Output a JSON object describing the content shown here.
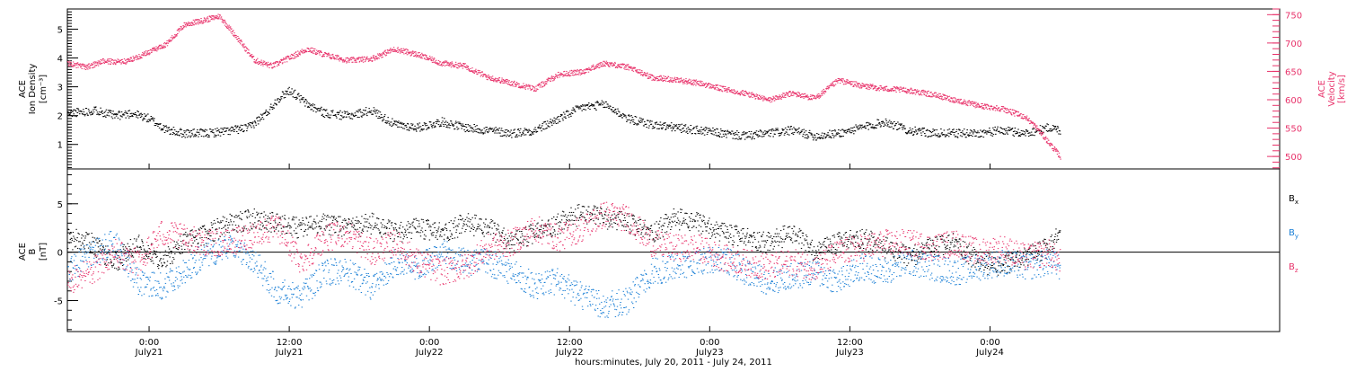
{
  "colors": {
    "axis": "#000000",
    "density": "#000000",
    "velocity": "#e8336b",
    "bx": "#000000",
    "by": "#1a7fd6",
    "bz": "#e8336b"
  },
  "x_axis": {
    "label": "hours:minutes, July 20, 2011 - July 24, 2011",
    "time_labels": [
      "0:00",
      "12:00",
      "0:00",
      "12:00",
      "0:00",
      "12:00",
      "0:00"
    ],
    "date_labels": [
      "July21",
      "July21",
      "July22",
      "July22",
      "July23",
      "July23",
      "July24"
    ]
  },
  "chart_data": [
    {
      "type": "scatter",
      "panel": "top",
      "x_unit": "hours since 2011-07-20 00:00 UT",
      "xlim": [
        17.0,
        120.8
      ],
      "x_tick_hours": [
        24,
        36,
        48,
        60,
        72,
        84,
        96
      ],
      "left_axis": {
        "label_lines": [
          "ACE",
          "Ion Density",
          "[cm⁻³]"
        ],
        "ylim": [
          0.15,
          5.7
        ],
        "ticks": [
          1,
          2,
          3,
          4,
          5
        ],
        "minor_step": 0.1
      },
      "right_axis": {
        "label_lines": [
          "ACE",
          "Velocity",
          "[km/s]"
        ],
        "ylim": [
          478,
          760
        ],
        "ticks": [
          500,
          550,
          600,
          650,
          700,
          750
        ],
        "minor_step": 10
      },
      "series": [
        {
          "key": "density",
          "axis": "left",
          "color_key": "density",
          "jitter": 0.15,
          "x": [
            17.0,
            19.5,
            21.0,
            22.5,
            24.0,
            25.5,
            27.0,
            29.0,
            31.0,
            32.5,
            34.0,
            35.0,
            36.0,
            37.5,
            39.0,
            41.0,
            43.0,
            45.0,
            47.0,
            49.0,
            51.0,
            53.0,
            55.0,
            57.0,
            59.0,
            61.0,
            63.0,
            65.0,
            67.0,
            69.0,
            71.0,
            73.0,
            75.0,
            77.0,
            79.0,
            81.0,
            83.0,
            85.0,
            87.0,
            89.0,
            91.0,
            93.0,
            95.0,
            97.0,
            99.0,
            101.0,
            102.0
          ],
          "values": [
            2.1,
            2.2,
            2.0,
            2.1,
            1.9,
            1.5,
            1.4,
            1.4,
            1.5,
            1.6,
            2.1,
            2.6,
            2.9,
            2.4,
            2.1,
            2.0,
            2.2,
            1.7,
            1.6,
            1.8,
            1.6,
            1.5,
            1.4,
            1.5,
            1.9,
            2.3,
            2.4,
            1.9,
            1.7,
            1.6,
            1.5,
            1.4,
            1.3,
            1.4,
            1.5,
            1.3,
            1.4,
            1.6,
            1.8,
            1.5,
            1.4,
            1.4,
            1.4,
            1.5,
            1.4,
            1.6,
            1.5
          ]
        },
        {
          "key": "velocity",
          "axis": "right",
          "color_key": "velocity",
          "jitter": 5,
          "x": [
            17.0,
            18.5,
            20.0,
            22.0,
            24.0,
            25.5,
            27.0,
            28.5,
            30.0,
            31.5,
            33.0,
            34.5,
            36.0,
            37.5,
            39.0,
            41.0,
            43.0,
            45.0,
            47.0,
            49.0,
            51.0,
            53.0,
            55.0,
            57.0,
            59.0,
            61.0,
            63.0,
            65.0,
            67.0,
            69.0,
            71.0,
            73.0,
            75.0,
            77.0,
            79.0,
            81.0,
            83.0,
            85.0,
            87.0,
            89.0,
            91.0,
            93.0,
            95.0,
            97.0,
            99.0,
            100.0,
            101.0,
            102.0
          ],
          "values": [
            665,
            658,
            668,
            668,
            685,
            700,
            733,
            740,
            748,
            710,
            670,
            660,
            675,
            690,
            680,
            670,
            673,
            690,
            680,
            665,
            660,
            640,
            630,
            620,
            645,
            650,
            665,
            658,
            640,
            636,
            630,
            620,
            612,
            600,
            612,
            603,
            635,
            625,
            620,
            617,
            610,
            600,
            590,
            585,
            570,
            550,
            525,
            500
          ]
        }
      ]
    },
    {
      "type": "scatter",
      "panel": "bottom",
      "x_unit": "hours since 2011-07-20 00:00 UT",
      "xlim": [
        17.0,
        120.8
      ],
      "x_tick_hours": [
        24,
        36,
        48,
        60,
        72,
        84,
        96
      ],
      "left_axis": {
        "label_lines": [
          "ACE",
          "B",
          "[nT]"
        ],
        "ylim": [
          -8.2,
          8.6
        ],
        "ticks": [
          -5,
          0,
          5
        ],
        "minor_step": 1,
        "zero_line": true
      },
      "legend": {
        "placement": "right",
        "entries": [
          {
            "base": "B",
            "sub": "x",
            "color_key": "bx"
          },
          {
            "base": "B",
            "sub": "y",
            "color_key": "by"
          },
          {
            "base": "B",
            "sub": "z",
            "color_key": "bz"
          }
        ]
      },
      "series": [
        {
          "key": "bx",
          "color_key": "bx",
          "jitter": 1.1,
          "x": [
            17.0,
            19.0,
            21.0,
            23.0,
            25.0,
            27.0,
            29.0,
            31.0,
            33.0,
            35.0,
            37.0,
            39.0,
            41.0,
            43.0,
            45.0,
            47.0,
            49.0,
            51.0,
            53.0,
            55.0,
            57.0,
            59.0,
            61.0,
            63.0,
            65.0,
            67.0,
            69.0,
            71.0,
            73.0,
            75.0,
            77.0,
            79.0,
            81.0,
            83.0,
            85.0,
            87.0,
            89.0,
            91.0,
            93.0,
            95.0,
            97.0,
            99.0,
            101.0,
            102.0
          ],
          "values": [
            1.5,
            1.0,
            -1.0,
            1.0,
            -1.0,
            1.0,
            2.0,
            3.0,
            3.5,
            3.0,
            2.5,
            3.0,
            2.5,
            3.0,
            2.0,
            2.5,
            2.0,
            3.0,
            2.5,
            1.0,
            2.0,
            3.0,
            4.0,
            3.5,
            3.0,
            2.0,
            3.5,
            3.0,
            2.0,
            1.5,
            1.0,
            2.0,
            0.0,
            1.0,
            1.5,
            0.5,
            -0.5,
            0.5,
            1.0,
            -1.0,
            -1.5,
            -0.5,
            0.5,
            2.0
          ]
        },
        {
          "key": "by",
          "color_key": "by",
          "jitter": 1.4,
          "x": [
            17.0,
            19.0,
            21.0,
            23.0,
            25.0,
            27.0,
            29.0,
            31.0,
            33.0,
            35.0,
            37.0,
            39.0,
            41.0,
            43.0,
            45.0,
            47.0,
            49.0,
            51.0,
            53.0,
            55.0,
            57.0,
            59.0,
            61.0,
            63.0,
            65.0,
            67.0,
            69.0,
            71.0,
            73.0,
            75.0,
            77.0,
            79.0,
            81.0,
            83.0,
            85.0,
            87.0,
            89.0,
            91.0,
            93.0,
            95.0,
            97.0,
            99.0,
            101.0,
            102.0
          ],
          "values": [
            -2.0,
            0.0,
            1.0,
            -3.0,
            -3.5,
            -2.0,
            0.0,
            0.5,
            -1.0,
            -4.0,
            -4.5,
            -2.0,
            -2.0,
            -3.5,
            -1.0,
            -1.5,
            0.0,
            -1.0,
            -1.0,
            -2.0,
            -3.5,
            -3.0,
            -4.5,
            -5.5,
            -5.0,
            -2.0,
            -1.5,
            -1.0,
            -0.5,
            -2.0,
            -3.0,
            -2.5,
            -2.0,
            -3.0,
            -1.5,
            -2.0,
            -1.0,
            -1.5,
            -2.0,
            -1.5,
            -1.0,
            -1.5,
            -1.0,
            -1.5
          ]
        },
        {
          "key": "bz",
          "color_key": "bz",
          "jitter": 1.4,
          "x": [
            17.0,
            19.0,
            21.0,
            23.0,
            25.0,
            27.0,
            29.0,
            31.0,
            33.0,
            35.0,
            37.0,
            39.0,
            41.0,
            43.0,
            45.0,
            47.0,
            49.0,
            51.0,
            53.0,
            55.0,
            57.0,
            59.0,
            61.0,
            63.0,
            65.0,
            67.0,
            69.0,
            71.0,
            73.0,
            75.0,
            77.0,
            79.0,
            81.0,
            83.0,
            85.0,
            87.0,
            89.0,
            91.0,
            93.0,
            95.0,
            97.0,
            99.0,
            101.0,
            102.0
          ],
          "values": [
            -3.0,
            -2.0,
            0.0,
            -1.0,
            2.0,
            1.5,
            1.0,
            1.0,
            2.0,
            2.5,
            -1.0,
            1.5,
            2.0,
            0.0,
            1.0,
            -1.0,
            -2.0,
            -1.5,
            0.5,
            1.0,
            2.5,
            1.5,
            2.5,
            4.0,
            3.5,
            1.0,
            0.5,
            0.5,
            -0.5,
            -1.0,
            -1.5,
            -1.0,
            -1.5,
            0.0,
            0.5,
            1.0,
            1.0,
            0.5,
            1.0,
            0.0,
            0.5,
            -0.5,
            0.0,
            -1.0
          ]
        }
      ]
    }
  ]
}
